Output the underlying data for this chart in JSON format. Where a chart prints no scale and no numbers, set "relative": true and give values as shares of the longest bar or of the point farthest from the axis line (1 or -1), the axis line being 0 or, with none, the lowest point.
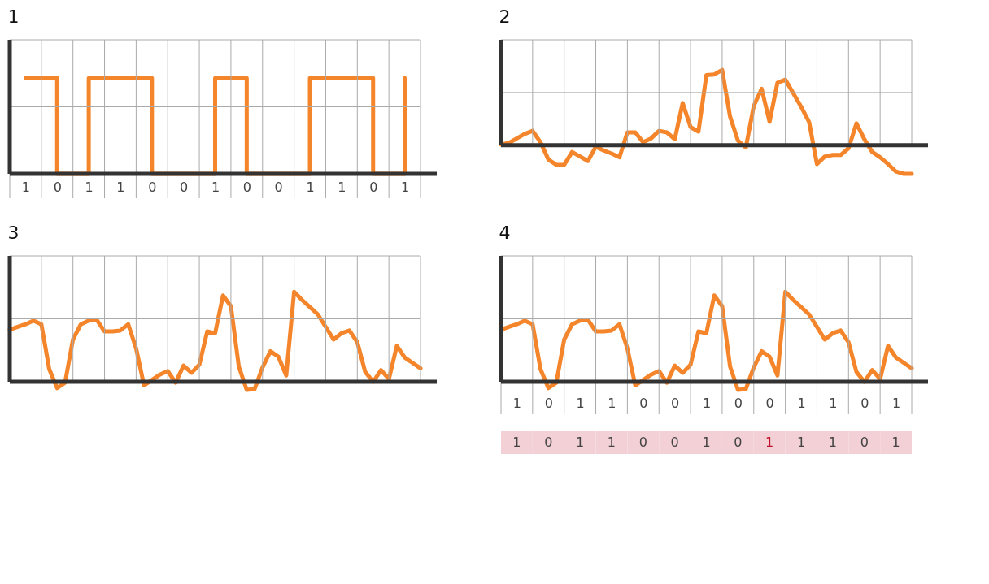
{
  "chart_data": [
    {
      "type": "step",
      "title": "1",
      "relative": true,
      "grid": true,
      "tick_labels": "x",
      "categories": [
        "1",
        "0",
        "1",
        "1",
        "0",
        "0",
        "1",
        "0",
        "0",
        "1",
        "1",
        "0",
        "1"
      ],
      "series": [
        {
          "color": "#f5852a",
          "values": [
            1,
            0,
            1,
            1,
            0,
            0,
            1,
            0,
            0,
            1,
            1,
            0,
            1
          ]
        }
      ]
    },
    {
      "type": "line",
      "title": "2",
      "relative": true,
      "grid": true,
      "tick_labels": false,
      "categories": [
        null,
        null,
        null,
        null,
        null,
        null,
        null,
        null,
        null,
        null,
        null,
        null,
        null,
        null,
        null,
        null,
        null,
        null,
        null,
        null,
        null,
        null,
        null,
        null,
        null,
        null,
        null,
        null,
        null,
        null,
        null,
        null,
        null,
        null,
        null,
        null,
        null,
        null,
        null,
        null,
        null,
        null,
        null,
        null,
        null,
        null,
        null,
        null,
        null,
        null,
        null,
        null,
        null
      ],
      "series": [
        {
          "color": "#f5852a",
          "values": [
            0.01,
            0.03,
            0.09,
            0.15,
            0.19,
            0.04,
            -0.19,
            -0.26,
            -0.26,
            -0.09,
            -0.15,
            -0.21,
            -0.02,
            -0.07,
            -0.11,
            -0.16,
            0.17,
            0.17,
            0.04,
            0.09,
            0.19,
            0.17,
            0.08,
            0.56,
            0.24,
            0.18,
            0.93,
            0.94,
            1,
            0.38,
            0.06,
            -0.03,
            0.52,
            0.75,
            0.31,
            0.83,
            0.87,
            0.69,
            0.51,
            0.31,
            -0.25,
            -0.15,
            -0.13,
            -0.13,
            -0.04,
            0.29,
            0.08,
            -0.09,
            -0.16,
            -0.25,
            -0.35,
            -0.38,
            -0.38
          ]
        }
      ]
    },
    {
      "type": "line",
      "title": "3",
      "relative": true,
      "grid": true,
      "tick_labels": false,
      "categories": [
        null,
        null,
        null,
        null,
        null,
        null,
        null,
        null,
        null,
        null,
        null,
        null,
        null,
        null,
        null,
        null,
        null,
        null,
        null,
        null,
        null,
        null,
        null,
        null,
        null,
        null,
        null,
        null,
        null,
        null,
        null,
        null,
        null,
        null,
        null,
        null,
        null,
        null,
        null,
        null,
        null,
        null,
        null,
        null,
        null,
        null,
        null,
        null,
        null,
        null,
        null,
        null,
        null
      ],
      "series": [
        {
          "color": "#f5852a",
          "values": [
            0.58,
            0.61,
            0.64,
            0.68,
            0.64,
            0.14,
            -0.07,
            -0.01,
            0.47,
            0.64,
            0.68,
            0.69,
            0.56,
            0.56,
            0.57,
            0.64,
            0.37,
            -0.04,
            0.02,
            0.08,
            0.12,
            -0.01,
            0.18,
            0.1,
            0.19,
            0.56,
            0.54,
            0.96,
            0.84,
            0.17,
            -0.09,
            -0.08,
            0.16,
            0.34,
            0.28,
            0.07,
            1,
            0.91,
            0.83,
            0.75,
            0.61,
            0.47,
            0.54,
            0.57,
            0.44,
            0.11,
            0,
            0.13,
            0.03,
            0.4,
            0.27,
            0.21,
            0.15
          ]
        }
      ]
    },
    {
      "type": "line",
      "title": "4",
      "relative": true,
      "grid": true,
      "tick_labels": "x",
      "categories": [
        null,
        null,
        "1",
        null,
        null,
        null,
        "0",
        null,
        null,
        null,
        "1",
        null,
        null,
        null,
        "1",
        null,
        null,
        null,
        "0",
        null,
        null,
        null,
        "0",
        null,
        null,
        null,
        "1",
        null,
        null,
        null,
        "0",
        null,
        null,
        null,
        "0",
        null,
        null,
        null,
        "1",
        null,
        null,
        null,
        "1",
        null,
        null,
        null,
        "0",
        null,
        null,
        null,
        "1",
        null,
        null
      ],
      "annotations": [
        "1",
        "0",
        "1",
        "1",
        "0",
        "0",
        "1",
        "0",
        "1",
        "1",
        "1",
        "0",
        "1"
      ],
      "series": [
        {
          "color": "#f5852a",
          "values": [
            0.58,
            0.61,
            0.64,
            0.68,
            0.64,
            0.14,
            -0.07,
            -0.01,
            0.47,
            0.64,
            0.68,
            0.69,
            0.56,
            0.56,
            0.57,
            0.64,
            0.37,
            -0.04,
            0.02,
            0.08,
            0.12,
            -0.01,
            0.18,
            0.1,
            0.19,
            0.56,
            0.54,
            0.96,
            0.84,
            0.17,
            -0.09,
            -0.08,
            0.16,
            0.34,
            0.28,
            0.07,
            1,
            0.91,
            0.83,
            0.75,
            0.61,
            0.47,
            0.54,
            0.57,
            0.44,
            0.11,
            0,
            0.13,
            0.03,
            0.4,
            0.27,
            0.21,
            0.15
          ]
        }
      ]
    }
  ]
}
